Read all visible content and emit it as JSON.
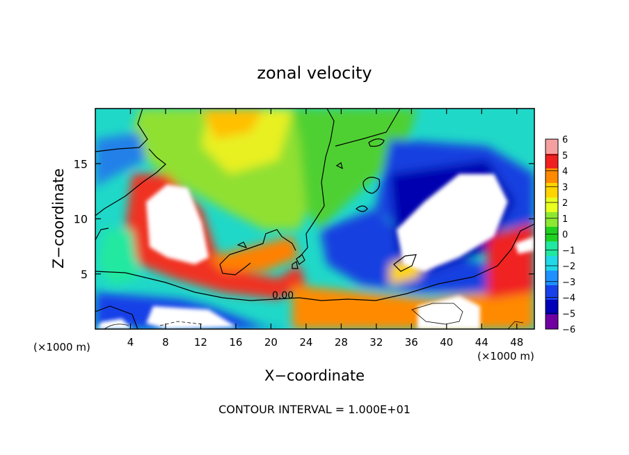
{
  "chart_data": {
    "type": "heatmap",
    "title": "zonal velocity",
    "xlabel": "X−coordinate",
    "ylabel": "Z−coordinate",
    "x_unit_left": "(×1000 m)",
    "x_unit_right": "(×1000 m)",
    "xlim": [
      0,
      50
    ],
    "ylim": [
      0,
      20
    ],
    "x_ticks": [
      4,
      8,
      12,
      16,
      20,
      24,
      28,
      32,
      36,
      40,
      44,
      48
    ],
    "y_ticks": [
      5,
      10,
      15
    ],
    "colorbar": {
      "min": -6,
      "max": 6,
      "ticks": [
        "6",
        "5",
        "4",
        "3",
        "2",
        "1",
        "0",
        "−1",
        "−2",
        "−3",
        "−4",
        "−5",
        "−6"
      ],
      "colors": [
        "#f4a0a0",
        "#f02020",
        "#ff8a00",
        "#ffd400",
        "#e8ff20",
        "#8ce830",
        "#20d020",
        "#20e8a0",
        "#20d8e8",
        "#1e90ff",
        "#1840e8",
        "#0000b8",
        "#7000a0"
      ]
    },
    "contour_label": "0.00",
    "footer": "CONTOUR INTERVAL = 1.000E+01"
  }
}
